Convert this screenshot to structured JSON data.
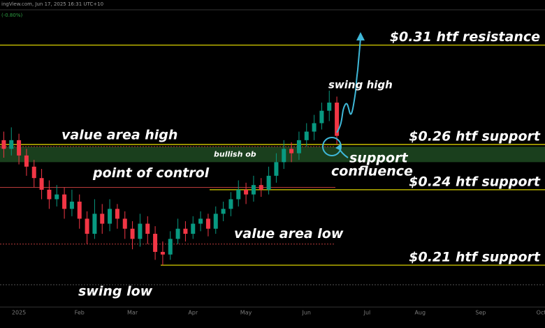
{
  "chart_data": {
    "type": "candlestick",
    "header": "ingView.com, Jun 17, 2025 16:31 UTC+10",
    "change": "(-0.80%)",
    "log_scale": true,
    "ylim": [
      0.195,
      0.33
    ],
    "colors": {
      "up": "#089981",
      "down": "#f23645",
      "level": "#d8d000",
      "zone": "#1f4a22",
      "poc": "#b83a3a"
    },
    "categories": [
      null,
      null,
      "2025",
      null,
      null,
      null,
      null,
      null,
      null,
      null,
      "Feb",
      null,
      null,
      null,
      null,
      null,
      null,
      "Mar",
      null,
      null,
      null,
      null,
      null,
      null,
      null,
      "Apr",
      null,
      null,
      null,
      null,
      null,
      null,
      "May",
      null,
      null,
      null,
      null,
      null,
      null,
      null,
      "Jun",
      null,
      null,
      null,
      null,
      null,
      null,
      null,
      "Jul",
      null,
      null,
      null,
      null,
      null,
      null,
      "Aug",
      null,
      null,
      null,
      null,
      null,
      null,
      null,
      "Sep",
      null,
      null,
      null,
      null,
      null,
      null,
      null,
      "Oct"
    ],
    "open": [
      0.262,
      0.258,
      0.262,
      0.255,
      0.25,
      0.245,
      0.24,
      0.236,
      0.238,
      0.232,
      0.235,
      0.228,
      0.222,
      0.23,
      0.226,
      0.232,
      0.228,
      0.224,
      0.22,
      0.226,
      0.222,
      0.215,
      0.214,
      0.22,
      0.224,
      0.222,
      0.226,
      0.228,
      0.224,
      0.23,
      0.232,
      0.236,
      0.24,
      0.238,
      0.242,
      0.24,
      0.246,
      0.252,
      0.258,
      0.256,
      0.262,
      0.266,
      0.27,
      0.276,
      0.28,
      null,
      null,
      null,
      null,
      null,
      null,
      null,
      null,
      null,
      null,
      null,
      null,
      null,
      null,
      null,
      null,
      null,
      null,
      null,
      null,
      null,
      null,
      null,
      null,
      null,
      null,
      null
    ],
    "high": [
      0.266,
      0.268,
      0.265,
      0.258,
      0.253,
      0.249,
      0.244,
      0.242,
      0.241,
      0.24,
      0.238,
      0.231,
      0.236,
      0.234,
      0.236,
      0.234,
      0.231,
      0.227,
      0.23,
      0.229,
      0.225,
      0.219,
      0.223,
      0.228,
      0.227,
      0.229,
      0.231,
      0.23,
      0.233,
      0.235,
      0.239,
      0.244,
      0.243,
      0.246,
      0.245,
      0.25,
      0.256,
      0.262,
      0.261,
      0.266,
      0.27,
      0.274,
      0.28,
      0.286,
      0.283,
      null,
      null,
      null,
      null,
      null,
      null,
      null,
      null,
      null,
      null,
      null,
      null,
      null,
      null,
      null,
      null,
      null,
      null,
      null,
      null,
      null,
      null,
      null,
      null,
      null,
      null,
      null
    ],
    "low": [
      0.254,
      0.255,
      0.251,
      0.246,
      0.241,
      0.236,
      0.232,
      0.233,
      0.228,
      0.229,
      0.224,
      0.218,
      0.22,
      0.222,
      0.223,
      0.224,
      0.22,
      0.216,
      0.217,
      0.218,
      0.212,
      0.21,
      0.212,
      0.218,
      0.219,
      0.22,
      0.223,
      0.221,
      0.222,
      0.227,
      0.229,
      0.233,
      0.234,
      0.235,
      0.237,
      0.238,
      0.243,
      0.249,
      0.252,
      0.253,
      0.259,
      0.262,
      0.267,
      0.271,
      0.26,
      null,
      null,
      null,
      null,
      null,
      null,
      null,
      null,
      null,
      null,
      null,
      null,
      null,
      null,
      null,
      null,
      null,
      null,
      null,
      null,
      null,
      null,
      null,
      null,
      null,
      null,
      null
    ],
    "close": [
      0.258,
      0.262,
      0.255,
      0.25,
      0.245,
      0.24,
      0.236,
      0.238,
      0.232,
      0.235,
      0.228,
      0.222,
      0.23,
      0.226,
      0.232,
      0.228,
      0.224,
      0.22,
      0.226,
      0.222,
      0.215,
      0.214,
      0.22,
      0.224,
      0.222,
      0.226,
      0.228,
      0.224,
      0.23,
      0.232,
      0.236,
      0.24,
      0.238,
      0.242,
      0.24,
      0.246,
      0.252,
      0.258,
      0.256,
      0.262,
      0.266,
      0.27,
      0.276,
      0.28,
      0.264,
      null,
      null,
      null,
      null,
      null,
      null,
      null,
      null,
      null,
      null,
      null,
      null,
      null,
      null,
      null,
      null,
      null,
      null,
      null,
      null,
      null,
      null,
      null,
      null,
      null,
      null,
      null
    ],
    "levels": [
      {
        "label": "$0.31 htf resistance",
        "value": 0.31
      },
      {
        "label": "$0.26 htf support",
        "value": 0.26
      },
      {
        "label": "$0.24 htf support",
        "value": 0.24
      },
      {
        "label": "$0.21 htf support",
        "value": 0.21
      }
    ],
    "value_area": [
      {
        "label": "value area high",
        "value": 0.259
      },
      {
        "label": "point of control",
        "value": 0.241
      },
      {
        "label": "value area low",
        "value": 0.218
      }
    ],
    "zone": {
      "label": "bullish ob",
      "low": 0.252,
      "high": 0.259
    },
    "annotations": [
      "swing high",
      "swing low",
      "support",
      "confluence"
    ]
  }
}
